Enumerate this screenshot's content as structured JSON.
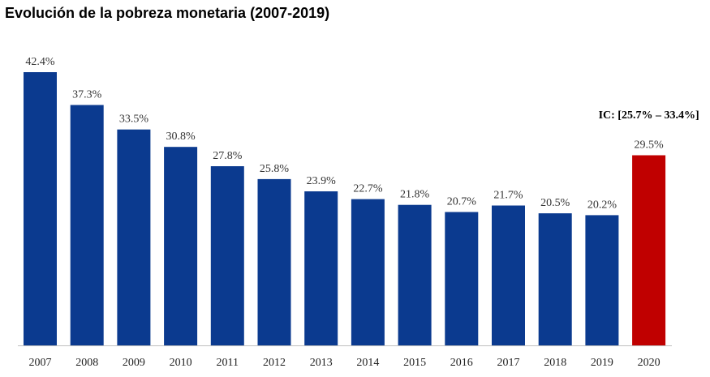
{
  "chart_data": {
    "type": "bar",
    "title": "Evolución de la pobreza monetaria (2007-2019)",
    "categories": [
      "2007",
      "2008",
      "2009",
      "2010",
      "2011",
      "2012",
      "2013",
      "2014",
      "2015",
      "2016",
      "2017",
      "2018",
      "2019",
      "2020"
    ],
    "values": [
      42.4,
      37.3,
      33.5,
      30.8,
      27.8,
      25.8,
      23.9,
      22.7,
      21.8,
      20.7,
      21.7,
      20.5,
      20.2,
      29.5
    ],
    "data_labels": [
      "42.4%",
      "37.3%",
      "33.5%",
      "30.8%",
      "27.8%",
      "25.8%",
      "23.9%",
      "22.7%",
      "21.8%",
      "20.7%",
      "21.7%",
      "20.5%",
      "20.2%",
      "29.5%"
    ],
    "ylim": [
      0,
      42.4
    ],
    "grid": false,
    "annotation": "IC: [25.7% – 33.4%]",
    "colors": {
      "default": "#0b3a8f",
      "highlight": "#c00000",
      "axis": "#bfbfbf"
    },
    "highlight_index": 13
  }
}
